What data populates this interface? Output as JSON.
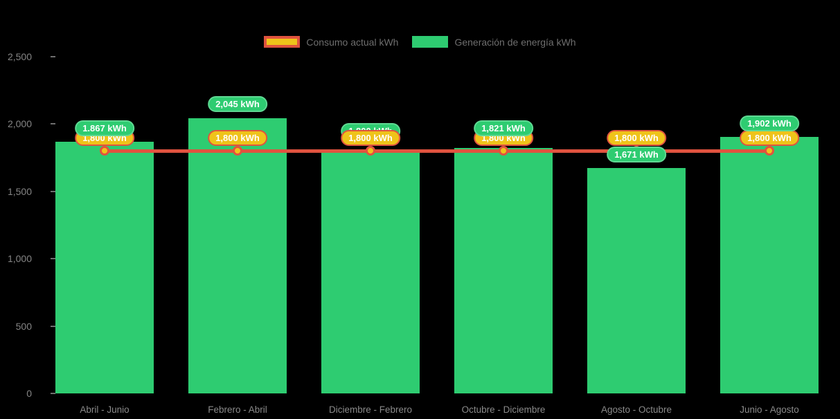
{
  "colors": {
    "green": "#2ecc71",
    "red": "#e0533f",
    "yellow": "#efc31a",
    "background": "#000000",
    "axis_text": "#858585",
    "legend_text": "#6e6e6e"
  },
  "legend": {
    "items": [
      {
        "id": "consumo",
        "label": "Consumo actual kWh"
      },
      {
        "id": "generacion",
        "label": "Generación de energía kWh"
      }
    ]
  },
  "chart_data": {
    "type": "bar",
    "title": "",
    "xlabel": "",
    "ylabel": "",
    "categories": [
      "Abril - Junio",
      "Febrero - Abril",
      "Diciembre - Febrero",
      "Octubre - Diciembre",
      "Agosto - Octubre",
      "Junio - Agosto"
    ],
    "series": [
      {
        "name": "Generación de energía kWh",
        "type": "bar",
        "values": [
          1867,
          2045,
          1800,
          1821,
          1671,
          1902
        ],
        "labels": [
          "1.867 kWh",
          "2,045 kWh",
          "1,800 kWh",
          "1,821 kWh",
          "1,671 kWh",
          "1,902 kWh"
        ]
      },
      {
        "name": "Consumo actual kWh",
        "type": "line",
        "values": [
          1800,
          1800,
          1800,
          1800,
          1800,
          1800
        ],
        "labels": [
          "1,800 kWh",
          "1,800 kWh",
          "1,800 kWh",
          "1,800 kWh",
          "1,800 kWh",
          "1,800 kWh"
        ]
      }
    ],
    "ylim": [
      0,
      2500
    ],
    "yticks": [
      0,
      500,
      1000,
      1500,
      2000,
      2500
    ],
    "ytick_labels": [
      "0",
      "500",
      "1,000",
      "1,500",
      "2,000",
      "2,500"
    ],
    "grid": false,
    "legend_position": "top"
  }
}
